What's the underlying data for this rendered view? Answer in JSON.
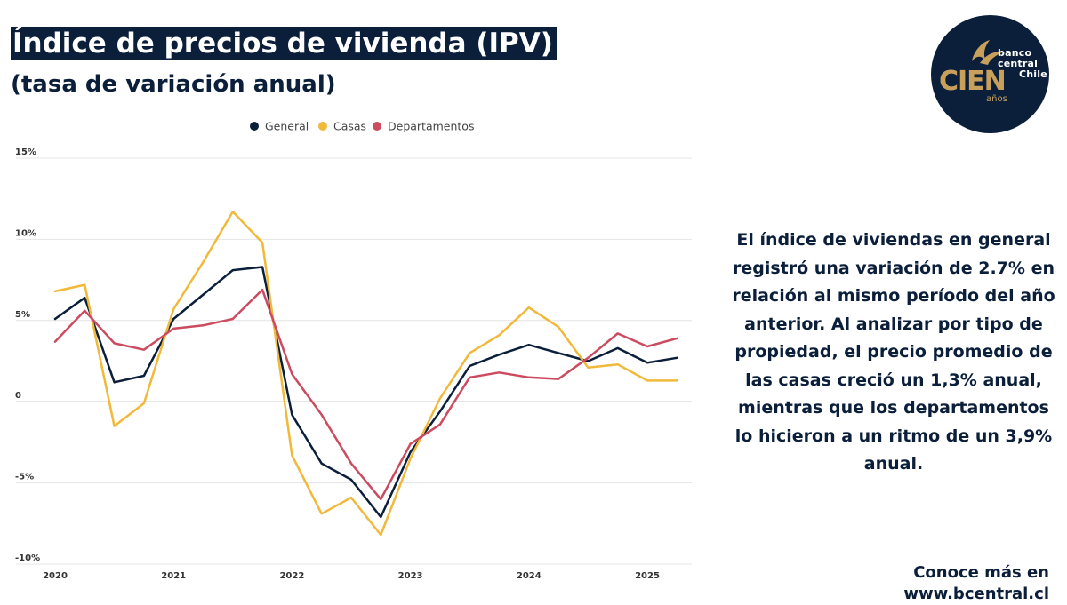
{
  "header": {
    "title": "Índice de precios de vivienda (IPV)",
    "subtitle": "(tasa de variación anual)"
  },
  "logo": {
    "word_banco": "banco",
    "word_central": "central",
    "word_chile": "Chile",
    "word_cien": "CIEN",
    "word_anos": "años",
    "background_color": "#0b1f3b",
    "accent_color": "#c8a05a"
  },
  "description": "El índice de viviendas en general registró una variación de 2.7% en relación al mismo período del año anterior. Al analizar por tipo de propiedad, el precio promedio de las casas creció un 1,3% anual, mientras que los departamentos lo hicieron a un ritmo de un 3,9% anual.",
  "footer": {
    "cta": "Conoce más en www.bcentral.cl"
  },
  "chart_data": {
    "type": "line",
    "title": "Índice de precios de vivienda (IPV)",
    "subtitle": "(tasa de variación anual)",
    "xlabel": "",
    "ylabel": "",
    "x": [
      "2020-T1",
      "2020-T2",
      "2020-T3",
      "2020-T4",
      "2021-T1",
      "2021-T2",
      "2021-T3",
      "2021-T4",
      "2022-T1",
      "2022-T2",
      "2022-T3",
      "2022-T4",
      "2023-T1",
      "2023-T2",
      "2023-T3",
      "2023-T4",
      "2024-T1",
      "2024-T2",
      "2024-T3",
      "2024-T4",
      "2025-T1",
      "2025-T2"
    ],
    "x_ticks": [
      "2020",
      "2021",
      "2022",
      "2023",
      "2024",
      "2025"
    ],
    "y_ticks": [
      "15%",
      "10%",
      "5%",
      "0",
      "-5%",
      "-10%"
    ],
    "y_tick_values": [
      15,
      10,
      5,
      0,
      -5,
      -10
    ],
    "ylim": [
      -10,
      15
    ],
    "grid": true,
    "legend_position": "top-center",
    "series": [
      {
        "name": "General",
        "color": "#0b1f3b",
        "values": [
          5.1,
          6.4,
          1.2,
          1.6,
          5.1,
          6.6,
          8.1,
          8.3,
          -0.8,
          -3.8,
          -4.8,
          -7.1,
          -3.1,
          -0.6,
          2.2,
          2.9,
          3.5,
          3.0,
          2.5,
          3.3,
          2.4,
          2.7
        ]
      },
      {
        "name": "Casas",
        "color": "#f0b93a",
        "values": [
          6.8,
          7.2,
          -1.5,
          -0.1,
          5.7,
          8.6,
          11.7,
          9.8,
          -3.3,
          -6.9,
          -5.9,
          -8.2,
          -3.5,
          0.2,
          3.0,
          4.1,
          5.8,
          4.6,
          2.1,
          2.3,
          1.3,
          1.3
        ]
      },
      {
        "name": "Departamentos",
        "color": "#cc4b5f",
        "values": [
          3.7,
          5.6,
          3.6,
          3.2,
          4.5,
          4.7,
          5.1,
          6.9,
          1.7,
          -0.8,
          -3.8,
          -6.0,
          -2.6,
          -1.4,
          1.5,
          1.8,
          1.5,
          1.4,
          2.7,
          4.2,
          3.4,
          3.9
        ]
      }
    ]
  }
}
